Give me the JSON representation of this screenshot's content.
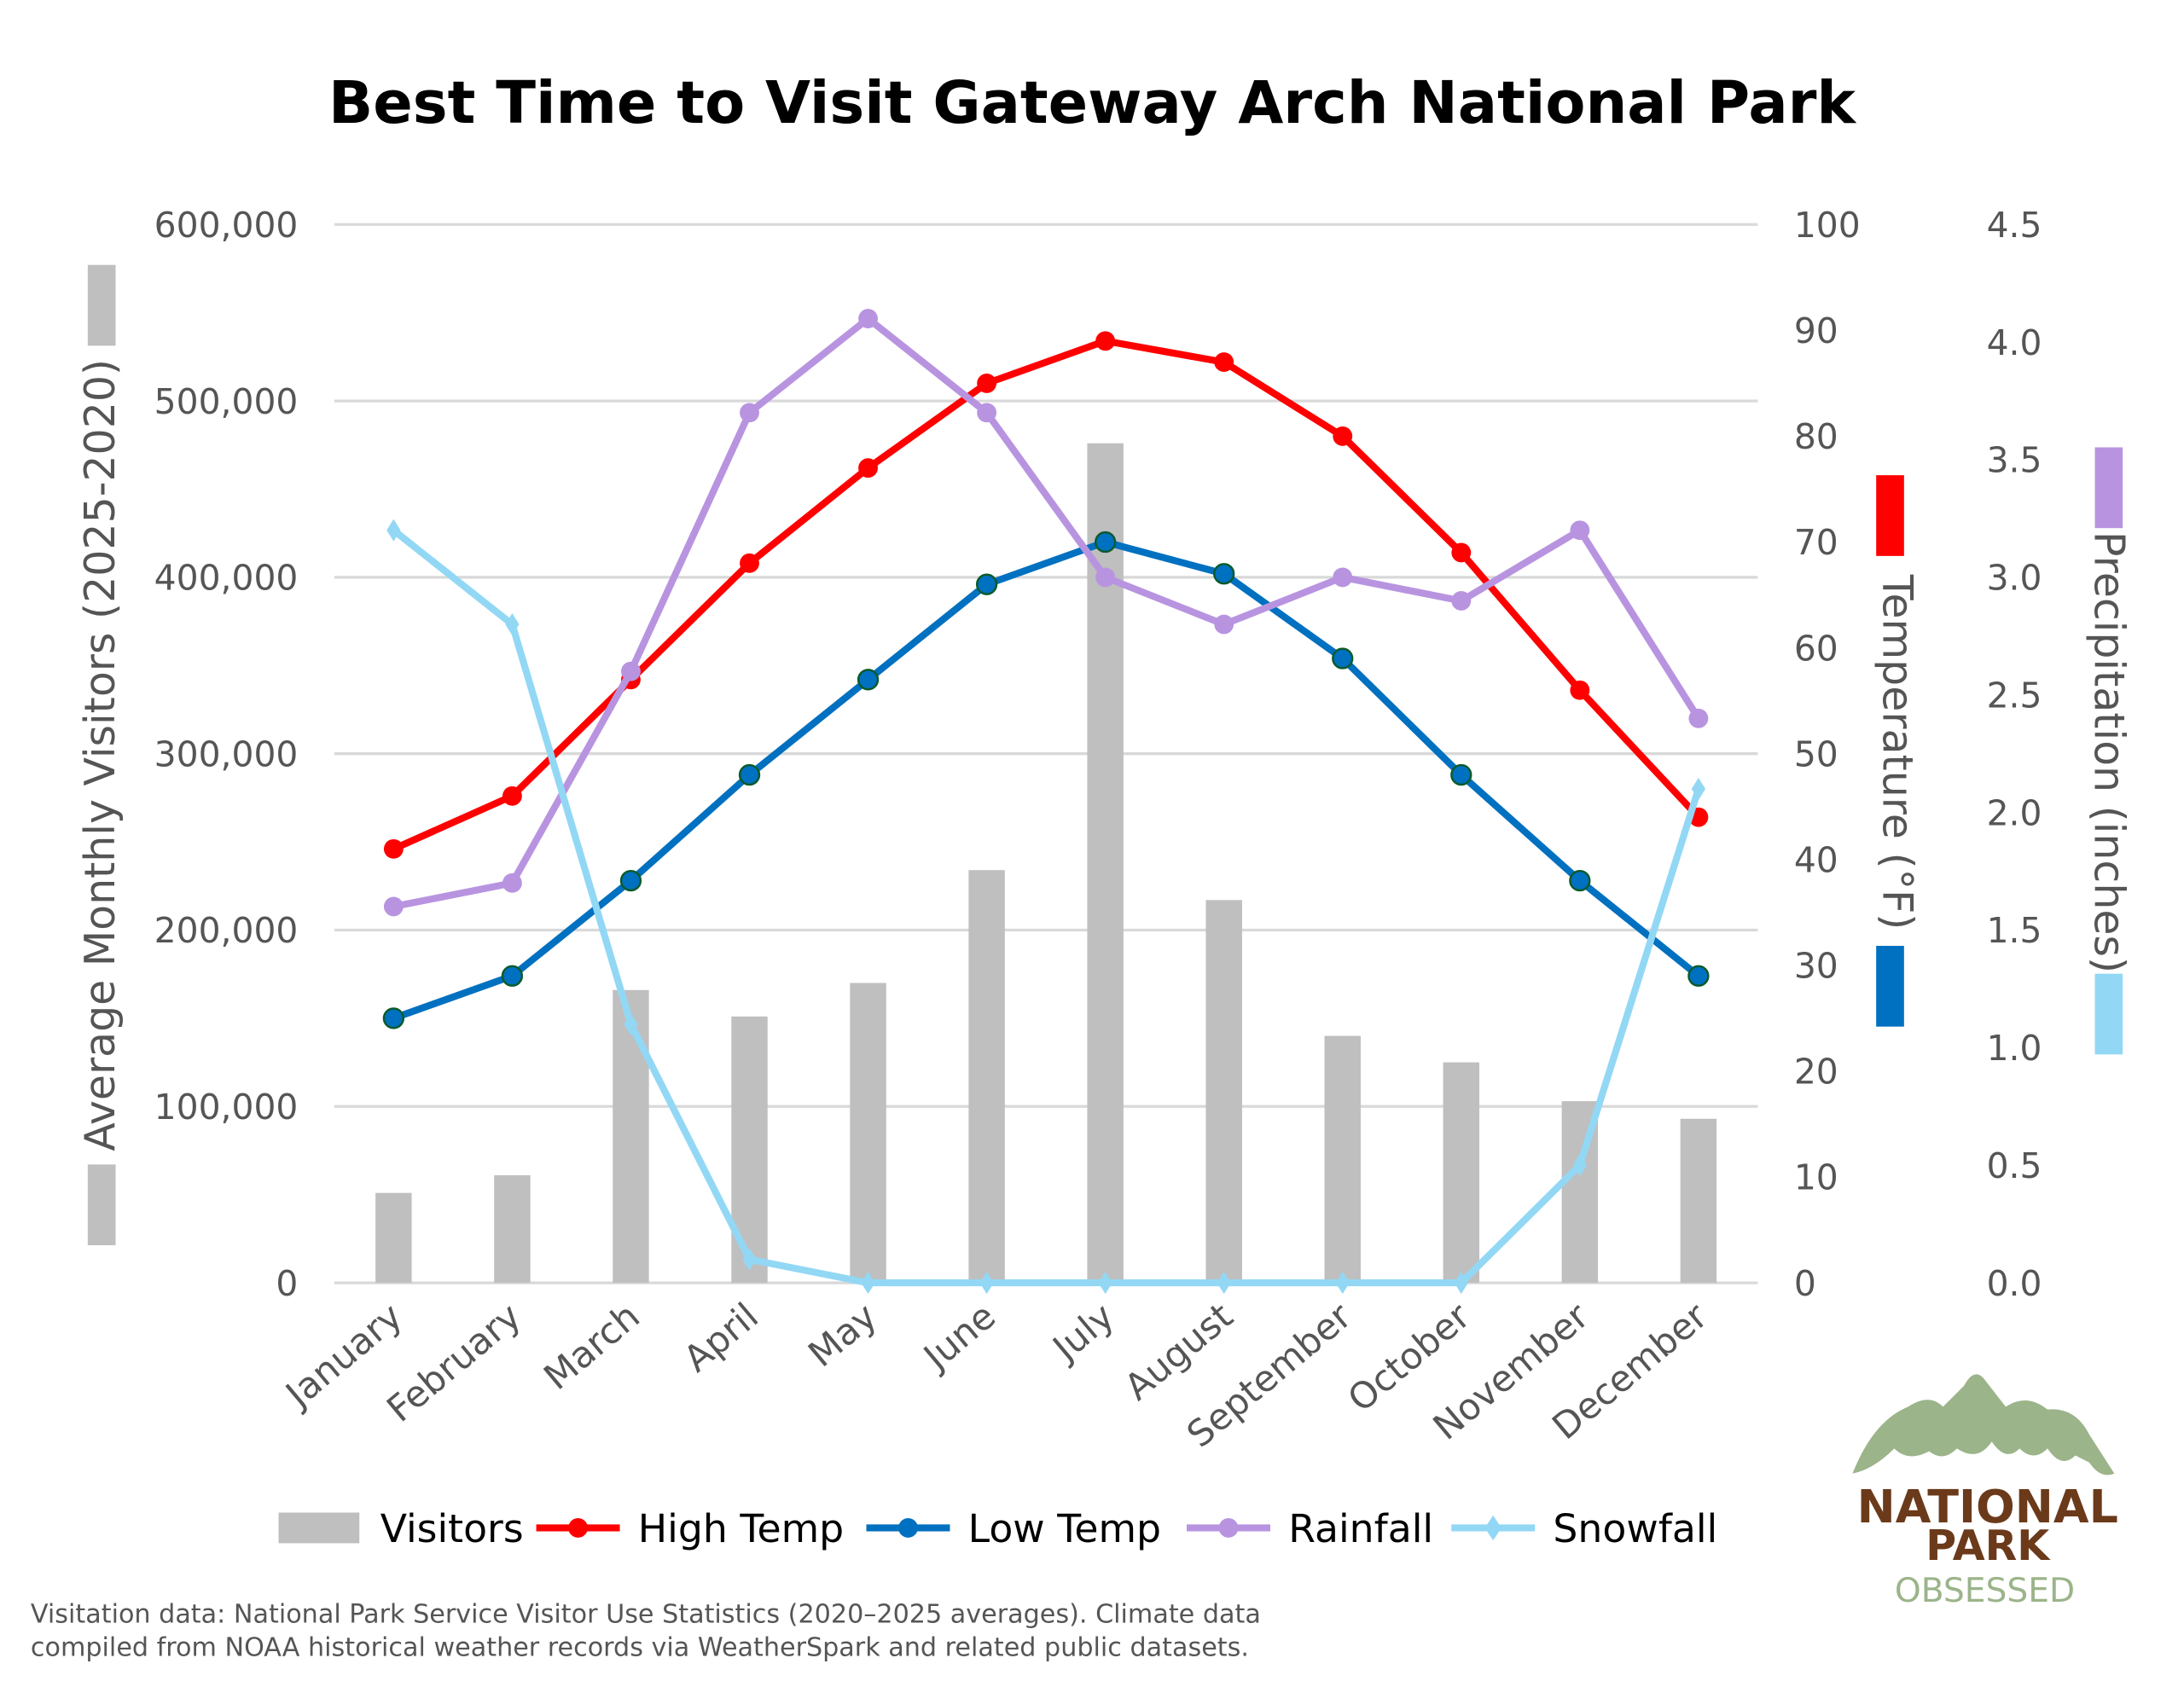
{
  "chart_data": {
    "type": "bar+line",
    "title": "Best Time to Visit Gateway Arch National Park",
    "categories": [
      "January",
      "February",
      "March",
      "April",
      "May",
      "June",
      "July",
      "August",
      "September",
      "October",
      "November",
      "December"
    ],
    "axes": {
      "left": {
        "label": "Average Monthly Visitors (2025-2020)",
        "ylim": [
          0,
          600000
        ],
        "ticks": [
          "0",
          "100,000",
          "200,000",
          "300,000",
          "400,000",
          "500,000",
          "600,000"
        ]
      },
      "right_temperature": {
        "label": "Temperature (°F)",
        "ylim": [
          0,
          100
        ],
        "ticks": [
          "0",
          "10",
          "20",
          "30",
          "40",
          "50",
          "60",
          "70",
          "80",
          "90",
          "100"
        ]
      },
      "right_precipitation": {
        "label": "Precipitation (inches)",
        "ylim": [
          0,
          4.5
        ],
        "ticks": [
          "0.0",
          "0.5",
          "1.0",
          "1.5",
          "2.0",
          "2.5",
          "3.0",
          "3.5",
          "4.0",
          "4.5"
        ]
      }
    },
    "grid": true,
    "legend_position": "bottom",
    "series": [
      {
        "name": "Visitors",
        "type": "bar",
        "axis": "left",
        "color": "#bfbfbf",
        "values": [
          51000,
          61000,
          166000,
          151000,
          170000,
          234000,
          476000,
          217000,
          140000,
          125000,
          103000,
          93000
        ]
      },
      {
        "name": "High Temp",
        "type": "line",
        "axis": "right_temperature",
        "color": "#ff0000",
        "marker": "circle",
        "values": [
          41,
          46,
          57,
          68,
          77,
          85,
          89,
          87,
          80,
          69,
          56,
          44
        ]
      },
      {
        "name": "Low Temp",
        "type": "line",
        "axis": "right_temperature",
        "color": "#0070c0",
        "marker": "circle",
        "values": [
          25,
          29,
          38,
          48,
          57,
          66,
          70,
          67,
          59,
          48,
          38,
          29
        ]
      },
      {
        "name": "Rainfall",
        "type": "line",
        "axis": "right_precipitation",
        "color": "#b894e0",
        "marker": "circle",
        "values": [
          1.6,
          1.7,
          2.6,
          3.7,
          4.1,
          3.7,
          3.0,
          2.8,
          3.0,
          2.9,
          3.2,
          2.4
        ]
      },
      {
        "name": "Snowfall",
        "type": "line",
        "axis": "right_precipitation",
        "color": "#92d8f5",
        "marker": "diamond",
        "values": [
          3.2,
          2.8,
          1.1,
          0.1,
          0,
          0,
          0,
          0,
          0,
          0,
          0.5,
          2.1
        ]
      }
    ]
  },
  "footnote": {
    "line1": "Visitation data: National Park Service Visitor Use Statistics (2020–2025 averages). Climate data",
    "line2": "compiled from NOAA historical weather records via WeatherSpark and related public datasets."
  },
  "logo": {
    "line1": "NATIONAL",
    "line2": "PARK",
    "line3": "OBSESSED",
    "colors": {
      "mountain": "#9bb48a",
      "brown": "#6b3a1a"
    }
  }
}
